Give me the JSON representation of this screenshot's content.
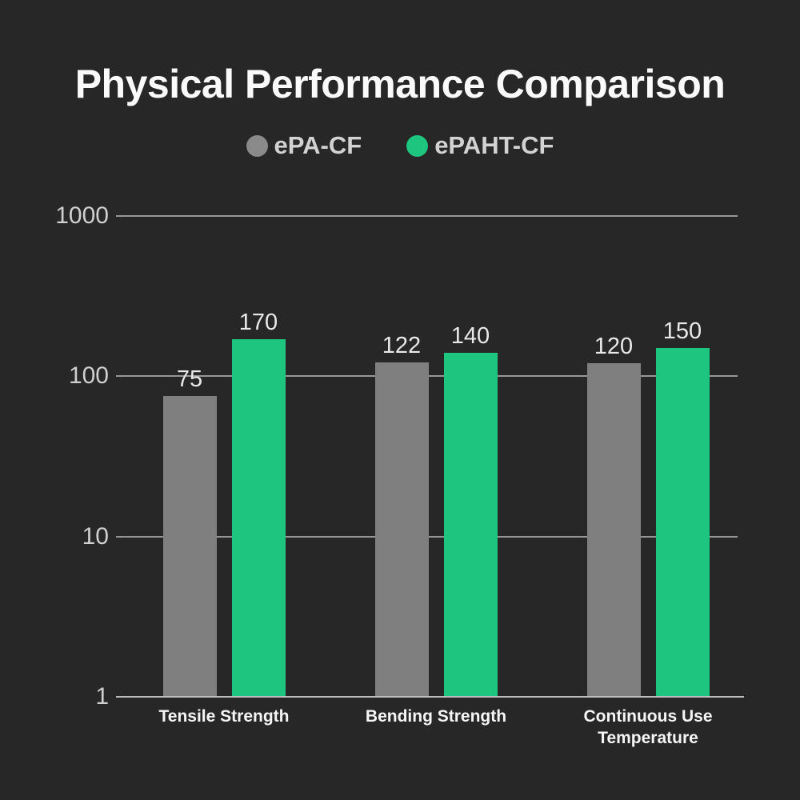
{
  "title": "Physical Performance Comparison",
  "legend": [
    {
      "label": "ePA-CF",
      "color": "#8A8A8A"
    },
    {
      "label": "ePAHT-CF",
      "color": "#1EC57F"
    }
  ],
  "chart_data": {
    "type": "bar",
    "title": "Physical Performance Comparison",
    "xlabel": "",
    "ylabel": "",
    "y_scale": "log",
    "ylim": [
      1,
      1000
    ],
    "y_ticks": [
      1000,
      100,
      10,
      1
    ],
    "grid": true,
    "legend_position": "top",
    "categories": [
      "Tensile Strength",
      "Bending Strength",
      "Continuous Use Temperature"
    ],
    "series": [
      {
        "name": "ePA-CF",
        "color": "#7F7F7F",
        "values": [
          75,
          122,
          120
        ]
      },
      {
        "name": "ePAHT-CF",
        "color": "#1EC57F",
        "values": [
          170,
          140,
          150
        ]
      }
    ]
  },
  "colors": {
    "background": "#272727",
    "title": "#FAFAFA",
    "legend_text": "#D2D2D2",
    "grid": "#969696",
    "baseline": "#BDBDBD",
    "tick_label": "#CFCFCF",
    "value_label": "#E8E8E8",
    "category_label": "#F5F5F5"
  }
}
